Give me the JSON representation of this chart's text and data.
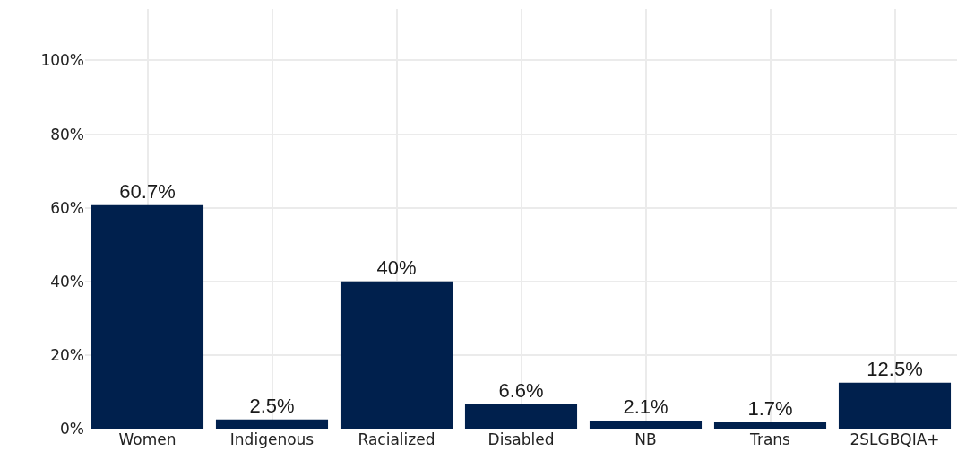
{
  "chart_data": {
    "type": "bar",
    "categories": [
      "Women",
      "Indigenous",
      "Racialized",
      "Disabled",
      "NB",
      "Trans",
      "2SLGBQIA+"
    ],
    "values": [
      60.7,
      2.5,
      40,
      6.6,
      2.1,
      1.7,
      12.5
    ],
    "value_labels": [
      "60.7%",
      "2.5%",
      "40%",
      "6.6%",
      "2.1%",
      "1.7%",
      "12.5%"
    ],
    "color": "#00204d",
    "ylim": [
      0,
      114
    ],
    "yticks": [
      {
        "value": 0,
        "label": "0%"
      },
      {
        "value": 20,
        "label": "20%"
      },
      {
        "value": 40,
        "label": "40%"
      },
      {
        "value": 60,
        "label": "60%"
      },
      {
        "value": 80,
        "label": "80%"
      },
      {
        "value": 100,
        "label": "100%"
      }
    ],
    "grid": true,
    "legend": false
  }
}
